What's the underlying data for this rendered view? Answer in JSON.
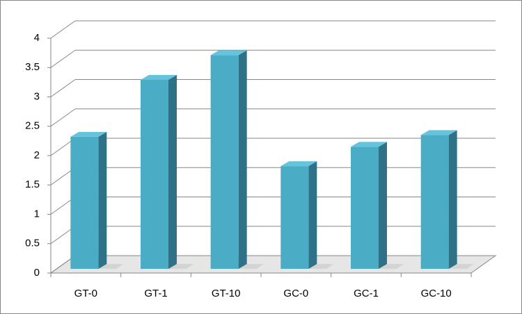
{
  "chart_data": {
    "type": "bar",
    "categories": [
      "GT-0",
      "GT-1",
      "GT-10",
      "GC-0",
      "GC-1",
      "GC-10"
    ],
    "values": [
      2.25,
      3.22,
      3.64,
      1.75,
      2.08,
      2.28
    ],
    "color": "#4bacc6",
    "ylim": [
      0,
      4
    ],
    "yticks": [
      0,
      0.5,
      1,
      1.5,
      2,
      2.5,
      3,
      3.5,
      4
    ],
    "grid": true
  }
}
